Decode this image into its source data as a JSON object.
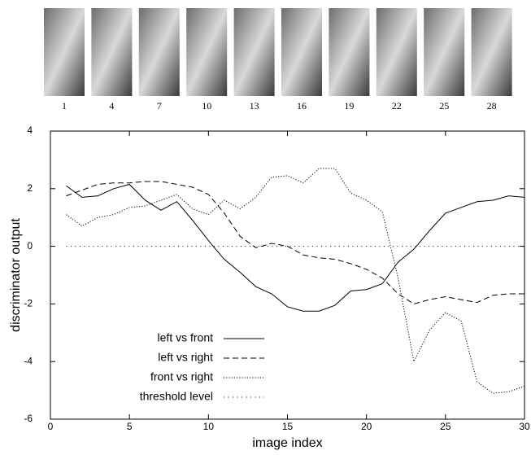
{
  "chart_data": {
    "type": "line",
    "frames": [
      "1",
      "4",
      "7",
      "10",
      "13",
      "16",
      "19",
      "22",
      "25",
      "28"
    ],
    "x_label": "image index",
    "y_label": "discriminator output",
    "x": [
      1,
      2,
      3,
      4,
      5,
      6,
      7,
      8,
      9,
      10,
      11,
      12,
      13,
      14,
      15,
      16,
      17,
      18,
      19,
      20,
      21,
      22,
      23,
      24,
      25,
      26,
      27,
      28,
      29,
      30
    ],
    "series": [
      {
        "name": "left vs front",
        "color": "#000000",
        "dash": "solid",
        "values": [
          2.1,
          1.7,
          1.75,
          2.0,
          2.15,
          1.6,
          1.25,
          1.55,
          0.9,
          0.2,
          -0.45,
          -0.9,
          -1.4,
          -1.65,
          -2.1,
          -2.25,
          -2.25,
          -2.05,
          -1.55,
          -1.5,
          -1.3,
          -0.55,
          -0.1,
          0.55,
          1.15,
          1.35,
          1.55,
          1.6,
          1.75,
          1.7
        ]
      },
      {
        "name": "left vs right",
        "color": "#000000",
        "dash": "dashed",
        "values": [
          1.75,
          1.95,
          2.15,
          2.2,
          2.2,
          2.25,
          2.25,
          2.15,
          2.05,
          1.8,
          1.15,
          0.35,
          -0.05,
          0.1,
          0.0,
          -0.3,
          -0.4,
          -0.45,
          -0.6,
          -0.8,
          -1.1,
          -1.65,
          -2.0,
          -1.85,
          -1.75,
          -1.85,
          -1.95,
          -1.7,
          -1.65,
          -1.65
        ]
      },
      {
        "name": "front vs right",
        "color": "#000000",
        "dash": "dotted",
        "values": [
          1.1,
          0.7,
          1.0,
          1.1,
          1.35,
          1.4,
          1.6,
          1.8,
          1.3,
          1.1,
          1.6,
          1.3,
          1.7,
          2.4,
          2.45,
          2.2,
          2.7,
          2.7,
          1.85,
          1.6,
          1.2,
          -1.1,
          -4.0,
          -2.9,
          -2.3,
          -2.6,
          -4.7,
          -5.1,
          -5.05,
          -4.85
        ]
      },
      {
        "name": "threshold level",
        "color": "#000000",
        "dash": "sparse-dotted",
        "values": [
          0,
          0,
          0,
          0,
          0,
          0,
          0,
          0,
          0,
          0,
          0,
          0,
          0,
          0,
          0,
          0,
          0,
          0,
          0,
          0,
          0,
          0,
          0,
          0,
          0,
          0,
          0,
          0,
          0,
          0
        ]
      }
    ],
    "xlim": [
      0,
      30
    ],
    "xticks": [
      0,
      5,
      10,
      15,
      20,
      25,
      30
    ],
    "ylim": [
      -6,
      4
    ],
    "yticks": [
      -6,
      -4,
      -2,
      0,
      2,
      4
    ],
    "grid": false,
    "legend": "lower-left"
  }
}
